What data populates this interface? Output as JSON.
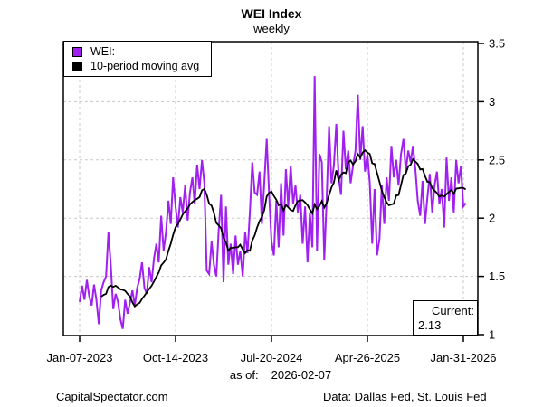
{
  "title": "WEI Index",
  "subtitle": "weekly",
  "legend": {
    "items": [
      {
        "label": "WEI:",
        "color": "#A020F0"
      },
      {
        "label": "10-period moving avg",
        "color": "#000000"
      }
    ]
  },
  "current_box": {
    "label": "Current:",
    "value": "2.13"
  },
  "as_of": {
    "label": "as of:",
    "date": "2026-02-07"
  },
  "footer": {
    "left": "CapitalSpectator.com",
    "right": "Data: Dallas Fed, St. Louis Fed"
  },
  "colors": {
    "wei_line": "#A020F0",
    "ma_line": "#000000",
    "grid": "#C8C8C8",
    "border": "#000000",
    "background": "#FFFFFF"
  },
  "chart_data": {
    "type": "line",
    "title": "WEI Index",
    "subtitle": "weekly",
    "x_start_date": "2023-01-07",
    "x_step_days": 7,
    "x_tick_labels": [
      "Jan-07-2023",
      "Oct-14-2023",
      "Jul-20-2024",
      "Apr-26-2025",
      "Jan-31-2026"
    ],
    "x_tick_weeks": [
      0,
      40,
      80,
      120,
      160
    ],
    "y_tick_labels": [
      "1",
      "1.5",
      "2",
      "2.5",
      "3",
      "3.5"
    ],
    "y_ticks": [
      1,
      1.5,
      2,
      2.5,
      3,
      3.5
    ],
    "grid_y": [
      1.5,
      2,
      2.5,
      3
    ],
    "ylim": [
      1,
      3.5
    ],
    "grid": "dashed",
    "legend_position": "top-left",
    "y_axis_side": "right",
    "current_value": 2.13,
    "series": [
      {
        "name": "WEI:",
        "color": "#A020F0",
        "values": [
          1.28,
          1.42,
          1.3,
          1.47,
          1.33,
          1.25,
          1.43,
          1.3,
          1.09,
          1.38,
          1.45,
          1.5,
          1.88,
          1.6,
          1.22,
          1.35,
          1.28,
          1.13,
          1.05,
          1.3,
          1.18,
          1.28,
          1.38,
          1.25,
          1.4,
          1.48,
          1.62,
          1.4,
          1.35,
          1.58,
          1.45,
          1.65,
          1.78,
          1.62,
          2.02,
          1.72,
          1.88,
          2.15,
          1.95,
          2.35,
          2.1,
          1.92,
          2.18,
          2.05,
          2.28,
          1.98,
          2.22,
          2.35,
          2.12,
          2.46,
          2.25,
          2.5,
          2.3,
          1.55,
          1.52,
          1.8,
          1.6,
          1.5,
          1.9,
          2.2,
          1.45,
          2.1,
          1.6,
          1.78,
          1.52,
          1.85,
          1.6,
          1.72,
          1.5,
          1.88,
          1.7,
          2.05,
          2.48,
          2.22,
          2.2,
          2.4,
          1.95,
          2.3,
          2.68,
          2.2,
          1.8,
          1.68,
          2.15,
          1.75,
          2.3,
          1.85,
          2.42,
          2.1,
          2.45,
          2.12,
          2.28,
          2.05,
          2.2,
          1.78,
          2.1,
          1.62,
          2.05,
          1.75,
          3.22,
          1.72,
          2.55,
          2.48,
          1.64,
          2.15,
          2.79,
          2.3,
          2.45,
          2.81,
          2.35,
          2.2,
          2.75,
          2.42,
          2.58,
          2.3,
          2.45,
          2.58,
          3.06,
          2.5,
          2.79,
          2.4,
          2.55,
          2.3,
          1.78,
          2.25,
          1.68,
          1.82,
          2.28,
          1.95,
          2.35,
          2.15,
          2.62,
          2.35,
          2.5,
          2.28,
          2.55,
          2.68,
          2.4,
          2.58,
          2.48,
          2.62,
          2.42,
          2.15,
          2.02,
          2.32,
          1.95,
          2.18,
          2.38,
          2.05,
          2.28,
          2.4,
          2.12,
          2.25,
          1.92,
          2.52,
          2.15,
          2.35,
          2.05,
          2.5,
          2.3,
          2.45,
          2.1,
          2.13
        ]
      },
      {
        "name": "10-period moving avg",
        "color": "#000000",
        "derived": "10-period moving average of WEI series",
        "window": 10
      }
    ]
  }
}
